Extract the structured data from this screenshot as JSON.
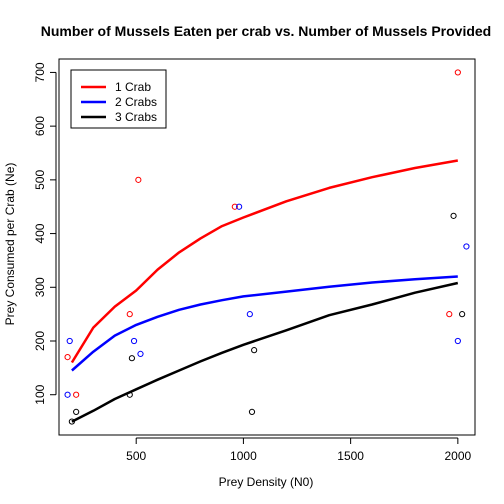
{
  "chart_data": {
    "type": "scatter",
    "title": "Number of Mussels Eaten per crab vs. Number of Mussels Provided",
    "xlabel": "Prey Density (N0)",
    "ylabel": "Prey Consumed per Crab (Ne)",
    "xlim": [
      140,
      2080
    ],
    "ylim": [
      25,
      725
    ],
    "xticks": [
      500,
      1000,
      1500,
      2000
    ],
    "yticks": [
      100,
      200,
      300,
      400,
      500,
      600,
      700
    ],
    "legend_position": "top-left",
    "series": [
      {
        "name": "1 Crab",
        "color": "#ff0000",
        "points": [
          [
            180,
            170
          ],
          [
            220,
            100
          ],
          [
            470,
            250
          ],
          [
            510,
            500
          ],
          [
            960,
            450
          ],
          [
            1960,
            250
          ],
          [
            2000,
            700
          ]
        ],
        "curve": [
          [
            200,
            160
          ],
          [
            300,
            225
          ],
          [
            400,
            264
          ],
          [
            500,
            294
          ],
          [
            600,
            333
          ],
          [
            700,
            365
          ],
          [
            800,
            391
          ],
          [
            900,
            414
          ],
          [
            1000,
            430
          ],
          [
            1200,
            460
          ],
          [
            1400,
            485
          ],
          [
            1600,
            505
          ],
          [
            1800,
            522
          ],
          [
            2000,
            536
          ]
        ]
      },
      {
        "name": "2 Crabs",
        "color": "#0000ff",
        "points": [
          [
            180,
            100
          ],
          [
            190,
            200
          ],
          [
            490,
            200
          ],
          [
            520,
            176
          ],
          [
            980,
            450
          ],
          [
            1030,
            250
          ],
          [
            2000,
            200
          ],
          [
            2040,
            376
          ]
        ],
        "curve": [
          [
            200,
            145
          ],
          [
            300,
            180
          ],
          [
            400,
            210
          ],
          [
            500,
            230
          ],
          [
            600,
            245
          ],
          [
            700,
            258
          ],
          [
            800,
            268
          ],
          [
            900,
            276
          ],
          [
            1000,
            283
          ],
          [
            1200,
            292
          ],
          [
            1400,
            301
          ],
          [
            1600,
            309
          ],
          [
            1800,
            315
          ],
          [
            2000,
            320
          ]
        ]
      },
      {
        "name": "3 Crabs",
        "color": "#000000",
        "points": [
          [
            200,
            50
          ],
          [
            220,
            68
          ],
          [
            470,
            100
          ],
          [
            480,
            168
          ],
          [
            1040,
            68
          ],
          [
            1050,
            183
          ],
          [
            1980,
            433
          ],
          [
            2020,
            250
          ]
        ],
        "curve": [
          [
            200,
            50
          ],
          [
            300,
            70
          ],
          [
            400,
            92
          ],
          [
            500,
            110
          ],
          [
            600,
            128
          ],
          [
            700,
            145
          ],
          [
            800,
            162
          ],
          [
            900,
            178
          ],
          [
            1000,
            193
          ],
          [
            1200,
            220
          ],
          [
            1400,
            248
          ],
          [
            1600,
            268
          ],
          [
            1800,
            290
          ],
          [
            2000,
            308
          ]
        ]
      }
    ]
  }
}
